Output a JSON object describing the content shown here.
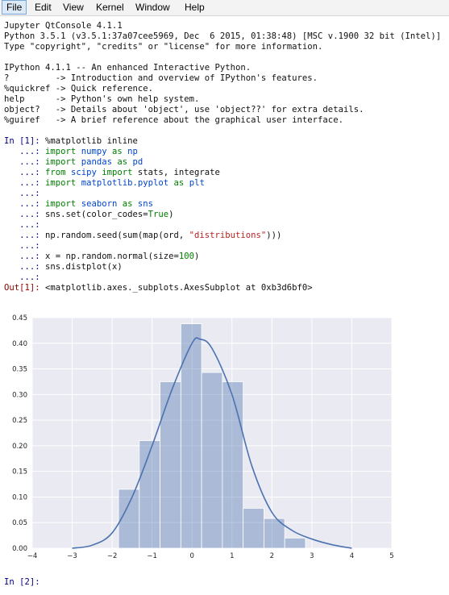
{
  "menubar": {
    "items": [
      {
        "label": "File"
      },
      {
        "label": "Edit"
      },
      {
        "label": "View"
      },
      {
        "label": "Kernel"
      },
      {
        "label": "Window"
      },
      {
        "label": "Help"
      }
    ]
  },
  "console": {
    "header": [
      "Jupyter QtConsole 4.1.1",
      "Python 3.5.1 (v3.5.1:37a07cee5969, Dec  6 2015, 01:38:48) [MSC v.1900 32 bit (Intel)]",
      "Type \"copyright\", \"credits\" or \"license\" for more information.",
      "",
      "IPython 4.1.1 -- An enhanced Interactive Python.",
      "?         -> Introduction and overview of IPython's features.",
      "%quickref -> Quick reference.",
      "help      -> Python's own help system.",
      "object?   -> Details about 'object', use 'object??' for extra details.",
      "%guiref   -> A brief reference about the graphical user interface."
    ],
    "in1_prompt": "In [1]: ",
    "cont_prompt": "   ...: ",
    "code": {
      "l1": "%matplotlib inline",
      "l2_kw": "import",
      "l2_mod": "numpy",
      "l2_as": "as",
      "l2_alias": "np",
      "l3_kw": "import",
      "l3_mod": "pandas",
      "l3_as": "as",
      "l3_alias": "pd",
      "l4_from": "from",
      "l4_mod": "scipy",
      "l4_import": "import",
      "l4_rest": "stats, integrate",
      "l5_kw": "import",
      "l5_mod": "matplotlib.pyplot",
      "l5_as": "as",
      "l5_alias": "plt",
      "l7_kw": "import",
      "l7_mod": "seaborn",
      "l7_as": "as",
      "l7_alias": "sns",
      "l8_a": "sns.set(color_codes=",
      "l8_b": "True",
      "l8_c": ")",
      "l10_a": "np.random.seed(sum(map(ord, ",
      "l10_str": "\"distributions\"",
      "l10_c": ")))",
      "l12_a": "x = np.random.normal(size=",
      "l12_num": "100",
      "l12_c": ")",
      "l13": "sns.distplot(x)"
    },
    "out1_prompt": "Out[1]: ",
    "out1_text": "<matplotlib.axes._subplots.AxesSubplot at 0xb3d6bf0>",
    "in2_prompt": "In [2]: "
  },
  "chart_data": {
    "type": "bar",
    "title": "",
    "xlabel": "",
    "ylabel": "",
    "xlim": [
      -4,
      5
    ],
    "ylim": [
      0,
      0.45
    ],
    "xticks": [
      "−4",
      "−3",
      "−2",
      "−1",
      "0",
      "1",
      "2",
      "3",
      "4",
      "5"
    ],
    "xtick_values": [
      -4,
      -3,
      -2,
      -1,
      0,
      1,
      2,
      3,
      4,
      5
    ],
    "yticks": [
      "0.00",
      "0.05",
      "0.10",
      "0.15",
      "0.20",
      "0.25",
      "0.30",
      "0.35",
      "0.40",
      "0.45"
    ],
    "ytick_values": [
      0,
      0.05,
      0.1,
      0.15,
      0.2,
      0.25,
      0.3,
      0.35,
      0.4,
      0.45
    ],
    "grid": true,
    "bar_color": "#4c72b0",
    "histogram": {
      "bin_edges": [
        -1.84,
        -1.32,
        -0.8,
        -0.28,
        0.24,
        0.76,
        1.28,
        1.8,
        2.32,
        2.84
      ],
      "density": [
        0.115,
        0.21,
        0.325,
        0.438,
        0.343,
        0.325,
        0.078,
        0.058,
        0.02
      ]
    },
    "kde": {
      "x": [
        -3.0,
        -2.5,
        -2.0,
        -1.5,
        -1.0,
        -0.5,
        0.0,
        0.2,
        0.5,
        1.0,
        1.5,
        2.0,
        2.5,
        3.0,
        3.5,
        4.0
      ],
      "y": [
        0.0,
        0.006,
        0.03,
        0.1,
        0.2,
        0.31,
        0.4,
        0.408,
        0.39,
        0.3,
        0.16,
        0.07,
        0.035,
        0.018,
        0.007,
        0.0
      ]
    }
  }
}
